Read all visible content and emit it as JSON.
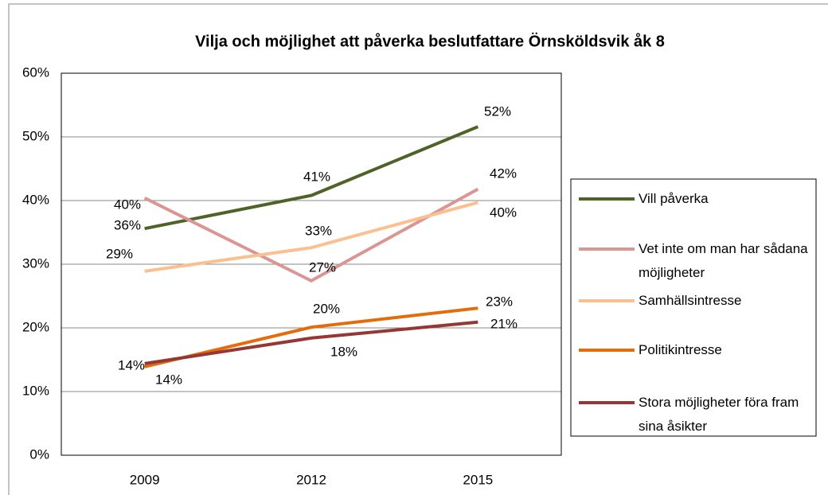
{
  "chart_data": {
    "type": "line",
    "title": "Vilja och möjlighet att påverka beslutfattare Örnsköldsvik åk 8",
    "categories": [
      "2009",
      "2012",
      "2015"
    ],
    "series": [
      {
        "name": "Vill påverka",
        "color": "#4f6228",
        "values": [
          35.6,
          40.8,
          51.6
        ],
        "value_labels": [
          "36%",
          "41%",
          "52%"
        ]
      },
      {
        "name": "Vet inte om man har sådana möjligheter",
        "color": "#d99694",
        "values": [
          40.4,
          27.4,
          41.8
        ],
        "value_labels": [
          "40%",
          "27%",
          "42%"
        ]
      },
      {
        "name": "Samhällsintresse",
        "color": "#fac090",
        "values": [
          28.9,
          32.6,
          39.7
        ],
        "value_labels": [
          "29%",
          "33%",
          "40%"
        ]
      },
      {
        "name": "Politikintresse",
        "color": "#e46c0a",
        "values": [
          13.9,
          20.1,
          23.1
        ],
        "value_labels": [
          "14%",
          "20%",
          "23%"
        ]
      },
      {
        "name": "Stora möjligheter föra fram sina åsikter",
        "color": "#953735",
        "values": [
          14.4,
          18.4,
          20.9
        ],
        "value_labels": [
          "14%",
          "18%",
          "21%"
        ]
      }
    ],
    "ylim": [
      0,
      60
    ],
    "yticks": [
      {
        "value": 0,
        "label": "0%"
      },
      {
        "value": 10,
        "label": "10%"
      },
      {
        "value": 20,
        "label": "20%"
      },
      {
        "value": 30,
        "label": "30%"
      },
      {
        "value": 40,
        "label": "40%"
      },
      {
        "value": 50,
        "label": "50%"
      },
      {
        "value": 60,
        "label": "60%"
      }
    ],
    "grid": true,
    "legend": "right"
  }
}
